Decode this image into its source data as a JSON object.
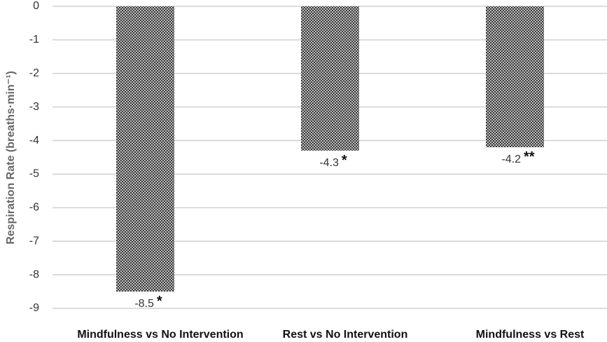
{
  "chart_data": {
    "type": "bar",
    "ylabel": "Respiration Rate (breaths·min⁻¹)",
    "categories": [
      "Mindfulness vs No Intervention",
      "Rest vs No Intervention",
      "Mindfulness vs Rest"
    ],
    "values": [
      -8.5,
      -4.3,
      -4.2
    ],
    "significance": [
      "*",
      "*",
      "**"
    ],
    "color": "#555555",
    "ylim": [
      -9,
      0
    ],
    "yticks": [
      0,
      -1,
      -2,
      -3,
      -4,
      -5,
      -6,
      -7,
      -8,
      -9
    ],
    "grid": true
  }
}
